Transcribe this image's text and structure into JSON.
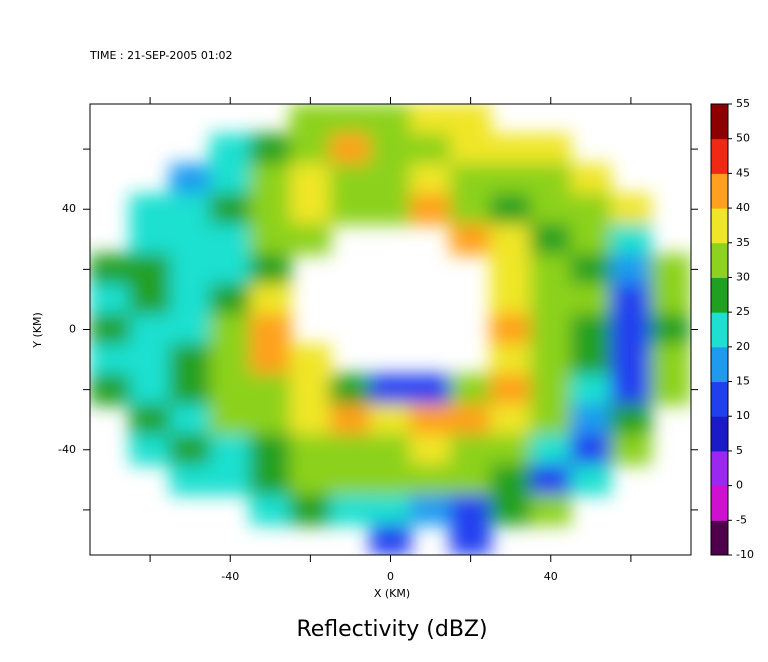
{
  "chart_data": {
    "type": "heatmap",
    "title": "TIME : 21-SEP-2005 01:02",
    "xlabel": "X (KM)",
    "ylabel": "Y (KM)",
    "caption": "Reflectivity (dBZ)",
    "xlim": [
      -75,
      75
    ],
    "ylim": [
      -75,
      75
    ],
    "xticks": [
      -40,
      0,
      40
    ],
    "yticks": [
      -40,
      0,
      40
    ],
    "xminorticks": [
      -60,
      -20,
      20,
      60
    ],
    "yminorticks": [
      -60,
      -20,
      20,
      60
    ],
    "x": [
      -70,
      -60,
      -50,
      -40,
      -30,
      -20,
      -10,
      0,
      10,
      20,
      30,
      40,
      50,
      60,
      70
    ],
    "y": [
      70,
      60,
      50,
      40,
      30,
      20,
      10,
      0,
      -10,
      -20,
      -30,
      -40,
      -50,
      -60,
      -70
    ],
    "values": [
      [
        null,
        null,
        null,
        null,
        null,
        32,
        34,
        33,
        35,
        38,
        null,
        null,
        null,
        null,
        null
      ],
      [
        null,
        null,
        null,
        24,
        28,
        33,
        40,
        32,
        30,
        35,
        38,
        36,
        null,
        null,
        null
      ],
      [
        null,
        null,
        15,
        22,
        30,
        35,
        33,
        30,
        38,
        33,
        30,
        32,
        35,
        null,
        null
      ],
      [
        null,
        22,
        22,
        25,
        30,
        35,
        30,
        33,
        44,
        32,
        28,
        30,
        32,
        38,
        null
      ],
      [
        null,
        24,
        22,
        24,
        33,
        30,
        null,
        null,
        null,
        40,
        35,
        28,
        30,
        22,
        null
      ],
      [
        26,
        28,
        24,
        22,
        28,
        null,
        null,
        null,
        null,
        null,
        38,
        30,
        28,
        18,
        30
      ],
      [
        24,
        27,
        24,
        28,
        35,
        null,
        null,
        null,
        null,
        null,
        38,
        32,
        30,
        12,
        30
      ],
      [
        26,
        24,
        24,
        32,
        40,
        null,
        null,
        null,
        null,
        null,
        44,
        30,
        28,
        10,
        28
      ],
      [
        24,
        22,
        28,
        34,
        42,
        38,
        null,
        null,
        null,
        null,
        38,
        32,
        26,
        10,
        32
      ],
      [
        26,
        24,
        28,
        30,
        34,
        35,
        28,
        14,
        10,
        30,
        44,
        30,
        20,
        12,
        30
      ],
      [
        null,
        26,
        24,
        30,
        32,
        35,
        40,
        36,
        44,
        40,
        35,
        30,
        18,
        28,
        null
      ],
      [
        null,
        24,
        25,
        22,
        28,
        30,
        32,
        34,
        35,
        33,
        30,
        20,
        12,
        30,
        null
      ],
      [
        null,
        null,
        22,
        24,
        25,
        30,
        32,
        33,
        32,
        30,
        25,
        12,
        20,
        null,
        null
      ],
      [
        null,
        null,
        null,
        null,
        22,
        25,
        24,
        22,
        15,
        12,
        28,
        30,
        null,
        null,
        null
      ],
      [
        null,
        null,
        null,
        null,
        null,
        null,
        null,
        12,
        null,
        14,
        null,
        null,
        null,
        null,
        null
      ]
    ],
    "clim": [
      -10,
      55
    ],
    "cticks": [
      -10,
      -5,
      0,
      5,
      10,
      15,
      20,
      25,
      30,
      35,
      40,
      45,
      50,
      55
    ],
    "colors": [
      "#50004a",
      "#d010d0",
      "#9a28f0",
      "#1a1ac8",
      "#2040f0",
      "#1e9bf0",
      "#1ee0d0",
      "#20a020",
      "#8cd21e",
      "#f0e628",
      "#ffa01e",
      "#f02814",
      "#8c0000"
    ]
  }
}
